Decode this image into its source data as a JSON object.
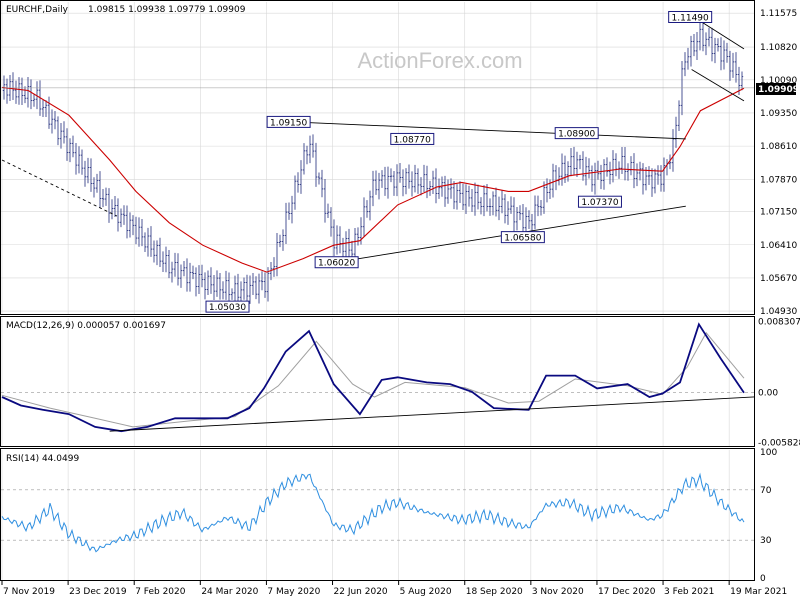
{
  "header": {
    "symbol": "EURCHF,Daily",
    "ohlc": "1.09815 1.09938 1.09779 1.09909",
    "watermark": "ActionForex.com"
  },
  "colors": {
    "candle": "#1f2a7a",
    "ma": "#cc0000",
    "macd": "#0a0a80",
    "signal": "#a0a0a0",
    "rsi": "#2f8fe0",
    "grid": "#d8d8d8",
    "label_border": "#1a1a80"
  },
  "chart_data": [
    {
      "type": "candlestick",
      "title": "EURCHF,Daily",
      "ylim": [
        1.0491,
        1.1178
      ],
      "y_ticks": [
        "1.11575",
        "1.10820",
        "1.10090",
        "1.09350",
        "1.08610",
        "1.07870",
        "1.07150",
        "1.06410",
        "1.05670",
        "1.04930"
      ],
      "x_ticks": [
        "7 Nov 2019",
        "23 Dec 2019",
        "7 Feb 2020",
        "24 Mar 2020",
        "7 May 2020",
        "22 Jun 2020",
        "5 Aug 2020",
        "18 Sep 2020",
        "3 Nov 2020",
        "17 Dec 2020",
        "3 Feb 2021",
        "19 Mar 2021"
      ],
      "price_path": [
        {
          "date": "2019-11-07",
          "close": 1.0985
        },
        {
          "date": "2019-12-01",
          "close": 1.096
        },
        {
          "date": "2019-12-23",
          "close": 1.085
        },
        {
          "date": "2020-01-20",
          "close": 1.072
        },
        {
          "date": "2020-02-07",
          "close": 1.067
        },
        {
          "date": "2020-03-01",
          "close": 1.059
        },
        {
          "date": "2020-03-24",
          "close": 1.056
        },
        {
          "date": "2020-04-15",
          "close": 1.054
        },
        {
          "date": "2020-05-07",
          "close": 1.056
        },
        {
          "date": "2020-05-20",
          "close": 1.07
        },
        {
          "date": "2020-06-05",
          "close": 1.088
        },
        {
          "date": "2020-06-22",
          "close": 1.066
        },
        {
          "date": "2020-07-05",
          "close": 1.064
        },
        {
          "date": "2020-07-20",
          "close": 1.079
        },
        {
          "date": "2020-08-05",
          "close": 1.08
        },
        {
          "date": "2020-08-25",
          "close": 1.079
        },
        {
          "date": "2020-09-18",
          "close": 1.076
        },
        {
          "date": "2020-10-15",
          "close": 1.074
        },
        {
          "date": "2020-11-03",
          "close": 1.07
        },
        {
          "date": "2020-11-20",
          "close": 1.08
        },
        {
          "date": "2020-12-05",
          "close": 1.084
        },
        {
          "date": "2020-12-17",
          "close": 1.08
        },
        {
          "date": "2021-01-05",
          "close": 1.083
        },
        {
          "date": "2021-01-25",
          "close": 1.079
        },
        {
          "date": "2021-02-03",
          "close": 1.08
        },
        {
          "date": "2021-02-10",
          "close": 1.086
        },
        {
          "date": "2021-02-18",
          "close": 1.106
        },
        {
          "date": "2021-03-01",
          "close": 1.111
        },
        {
          "date": "2021-03-19",
          "close": 1.106
        },
        {
          "date": "2021-03-31",
          "close": 1.0991
        }
      ],
      "ma_path": [
        {
          "date": "2019-11-07",
          "value": 1.0992
        },
        {
          "date": "2019-11-25",
          "value": 1.0985
        },
        {
          "date": "2019-12-23",
          "value": 1.093
        },
        {
          "date": "2020-01-20",
          "value": 1.083
        },
        {
          "date": "2020-02-07",
          "value": 1.076
        },
        {
          "date": "2020-03-01",
          "value": 1.069
        },
        {
          "date": "2020-03-24",
          "value": 1.064
        },
        {
          "date": "2020-04-20",
          "value": 1.06
        },
        {
          "date": "2020-05-07",
          "value": 1.058
        },
        {
          "date": "2020-06-01",
          "value": 1.061
        },
        {
          "date": "2020-06-22",
          "value": 1.064
        },
        {
          "date": "2020-07-10",
          "value": 1.065
        },
        {
          "date": "2020-08-05",
          "value": 1.073
        },
        {
          "date": "2020-09-01",
          "value": 1.077
        },
        {
          "date": "2020-09-18",
          "value": 1.078
        },
        {
          "date": "2020-10-20",
          "value": 1.076
        },
        {
          "date": "2020-11-03",
          "value": 1.076
        },
        {
          "date": "2020-12-01",
          "value": 1.0795
        },
        {
          "date": "2021-01-05",
          "value": 1.081
        },
        {
          "date": "2021-02-03",
          "value": 1.0805
        },
        {
          "date": "2021-02-15",
          "value": 1.086
        },
        {
          "date": "2021-03-01",
          "value": 1.094
        },
        {
          "date": "2021-03-31",
          "value": 1.099
        }
      ],
      "price_labels": [
        {
          "text": "1.11490",
          "date": "2021-02-22",
          "value": 1.1149
        },
        {
          "text": "1.09150",
          "date": "2020-05-22",
          "value": 1.0915
        },
        {
          "text": "1.08770",
          "date": "2020-08-15",
          "value": 1.0877
        },
        {
          "text": "1.08900",
          "date": "2020-12-06",
          "value": 1.089
        },
        {
          "text": "1.07370",
          "date": "2020-12-22",
          "value": 1.0737
        },
        {
          "text": "1.06580",
          "date": "2020-10-30",
          "value": 1.0658
        },
        {
          "text": "1.06020",
          "date": "2020-06-24",
          "value": 1.0602
        },
        {
          "text": "1.05030",
          "date": "2020-04-10",
          "value": 1.0503
        }
      ],
      "trendlines": [
        {
          "style": "solid",
          "from": {
            "date": "2020-05-25",
            "value": 1.0915
          },
          "to": {
            "date": "2021-02-19",
            "value": 1.0877
          }
        },
        {
          "style": "solid",
          "from": {
            "date": "2020-06-20",
            "value": 1.06
          },
          "to": {
            "date": "2021-02-19",
            "value": 1.0727
          }
        },
        {
          "style": "solid",
          "from": {
            "date": "2021-02-23",
            "value": 1.1152
          },
          "to": {
            "date": "2021-03-31",
            "value": 1.1078
          }
        },
        {
          "style": "solid",
          "from": {
            "date": "2021-02-23",
            "value": 1.1032
          },
          "to": {
            "date": "2021-03-31",
            "value": 1.0962
          }
        },
        {
          "style": "dashed",
          "from": {
            "date": "2019-11-07",
            "value": 1.083
          },
          "to": {
            "date": "2020-01-25",
            "value": 1.0705
          }
        }
      ],
      "current_price": "1.09909"
    },
    {
      "type": "line",
      "title": "MACD(12,26,9) 0.000057 0.001697",
      "ylim": [
        -0.006,
        0.0085
      ],
      "y_ticks": [
        "0.008307",
        "0.00",
        "-0.005828"
      ],
      "zero_line": true,
      "macd_path": [
        {
          "date": "2019-11-07",
          "value": -0.0005
        },
        {
          "date": "2019-11-20",
          "value": -0.0015
        },
        {
          "date": "2019-12-05",
          "value": -0.002
        },
        {
          "date": "2019-12-23",
          "value": -0.0025
        },
        {
          "date": "2020-01-10",
          "value": -0.004
        },
        {
          "date": "2020-01-28",
          "value": -0.0045
        },
        {
          "date": "2020-02-15",
          "value": -0.004
        },
        {
          "date": "2020-03-05",
          "value": -0.003
        },
        {
          "date": "2020-03-24",
          "value": -0.003
        },
        {
          "date": "2020-04-10",
          "value": -0.003
        },
        {
          "date": "2020-04-25",
          "value": -0.0018
        },
        {
          "date": "2020-05-05",
          "value": 0.0005
        },
        {
          "date": "2020-05-20",
          "value": 0.0048
        },
        {
          "date": "2020-06-05",
          "value": 0.0072
        },
        {
          "date": "2020-06-22",
          "value": 0.001
        },
        {
          "date": "2020-07-10",
          "value": -0.0025
        },
        {
          "date": "2020-07-25",
          "value": 0.0015
        },
        {
          "date": "2020-08-05",
          "value": 0.0018
        },
        {
          "date": "2020-08-25",
          "value": 0.0012
        },
        {
          "date": "2020-09-10",
          "value": 0.001
        },
        {
          "date": "2020-09-25",
          "value": 0.0001
        },
        {
          "date": "2020-10-10",
          "value": -0.0018
        },
        {
          "date": "2020-11-03",
          "value": -0.002
        },
        {
          "date": "2020-11-15",
          "value": 0.002
        },
        {
          "date": "2020-12-05",
          "value": 0.002
        },
        {
          "date": "2020-12-20",
          "value": 0.0005
        },
        {
          "date": "2021-01-10",
          "value": 0.001
        },
        {
          "date": "2021-01-25",
          "value": -0.0005
        },
        {
          "date": "2021-02-03",
          "value": -0.0001
        },
        {
          "date": "2021-02-15",
          "value": 0.0012
        },
        {
          "date": "2021-02-28",
          "value": 0.008
        },
        {
          "date": "2021-03-15",
          "value": 0.004
        },
        {
          "date": "2021-03-31",
          "value": 0.0
        }
      ],
      "signal_path": [
        {
          "date": "2019-11-07",
          "value": -0.0003
        },
        {
          "date": "2019-12-10",
          "value": -0.0018
        },
        {
          "date": "2020-01-10",
          "value": -0.003
        },
        {
          "date": "2020-02-05",
          "value": -0.004
        },
        {
          "date": "2020-03-15",
          "value": -0.0033
        },
        {
          "date": "2020-04-15",
          "value": -0.0028
        },
        {
          "date": "2020-05-15",
          "value": 0.0008
        },
        {
          "date": "2020-06-10",
          "value": 0.006
        },
        {
          "date": "2020-07-05",
          "value": 0.001
        },
        {
          "date": "2020-07-20",
          "value": -0.0005
        },
        {
          "date": "2020-08-10",
          "value": 0.0012
        },
        {
          "date": "2020-09-20",
          "value": 0.0006
        },
        {
          "date": "2020-10-20",
          "value": -0.0012
        },
        {
          "date": "2020-11-10",
          "value": -0.001
        },
        {
          "date": "2020-12-05",
          "value": 0.0016
        },
        {
          "date": "2021-01-10",
          "value": 0.0008
        },
        {
          "date": "2021-02-03",
          "value": -0.0002
        },
        {
          "date": "2021-02-20",
          "value": 0.003
        },
        {
          "date": "2021-03-05",
          "value": 0.007
        },
        {
          "date": "2021-03-31",
          "value": 0.0017
        }
      ],
      "trendline": {
        "from": {
          "date": "2020-01-20",
          "value": -0.0045
        },
        "to": {
          "date": "2021-03-31",
          "value": -0.0005
        }
      }
    },
    {
      "type": "line",
      "title": "RSI(14) 44.0499",
      "ylim": [
        0,
        100
      ],
      "y_ticks": [
        "100",
        "70",
        "30",
        "0"
      ],
      "levels": [
        70,
        30
      ],
      "rsi_path": [
        {
          "date": "2019-11-07",
          "value": 48
        },
        {
          "date": "2019-11-25",
          "value": 40
        },
        {
          "date": "2019-12-10",
          "value": 55
        },
        {
          "date": "2019-12-23",
          "value": 35
        },
        {
          "date": "2020-01-10",
          "value": 22
        },
        {
          "date": "2020-01-25",
          "value": 30
        },
        {
          "date": "2020-02-07",
          "value": 34
        },
        {
          "date": "2020-02-25",
          "value": 45
        },
        {
          "date": "2020-03-10",
          "value": 52
        },
        {
          "date": "2020-03-24",
          "value": 38
        },
        {
          "date": "2020-04-10",
          "value": 48
        },
        {
          "date": "2020-04-25",
          "value": 40
        },
        {
          "date": "2020-05-07",
          "value": 60
        },
        {
          "date": "2020-05-20",
          "value": 75
        },
        {
          "date": "2020-06-05",
          "value": 82
        },
        {
          "date": "2020-06-22",
          "value": 42
        },
        {
          "date": "2020-07-05",
          "value": 38
        },
        {
          "date": "2020-07-25",
          "value": 56
        },
        {
          "date": "2020-08-05",
          "value": 60
        },
        {
          "date": "2020-08-25",
          "value": 52
        },
        {
          "date": "2020-09-18",
          "value": 46
        },
        {
          "date": "2020-10-05",
          "value": 50
        },
        {
          "date": "2020-10-20",
          "value": 44
        },
        {
          "date": "2020-11-03",
          "value": 40
        },
        {
          "date": "2020-11-15",
          "value": 58
        },
        {
          "date": "2020-12-01",
          "value": 60
        },
        {
          "date": "2020-12-17",
          "value": 50
        },
        {
          "date": "2021-01-05",
          "value": 56
        },
        {
          "date": "2021-01-25",
          "value": 46
        },
        {
          "date": "2021-02-03",
          "value": 50
        },
        {
          "date": "2021-02-18",
          "value": 74
        },
        {
          "date": "2021-02-28",
          "value": 78
        },
        {
          "date": "2021-03-15",
          "value": 60
        },
        {
          "date": "2021-03-31",
          "value": 44
        }
      ]
    }
  ]
}
